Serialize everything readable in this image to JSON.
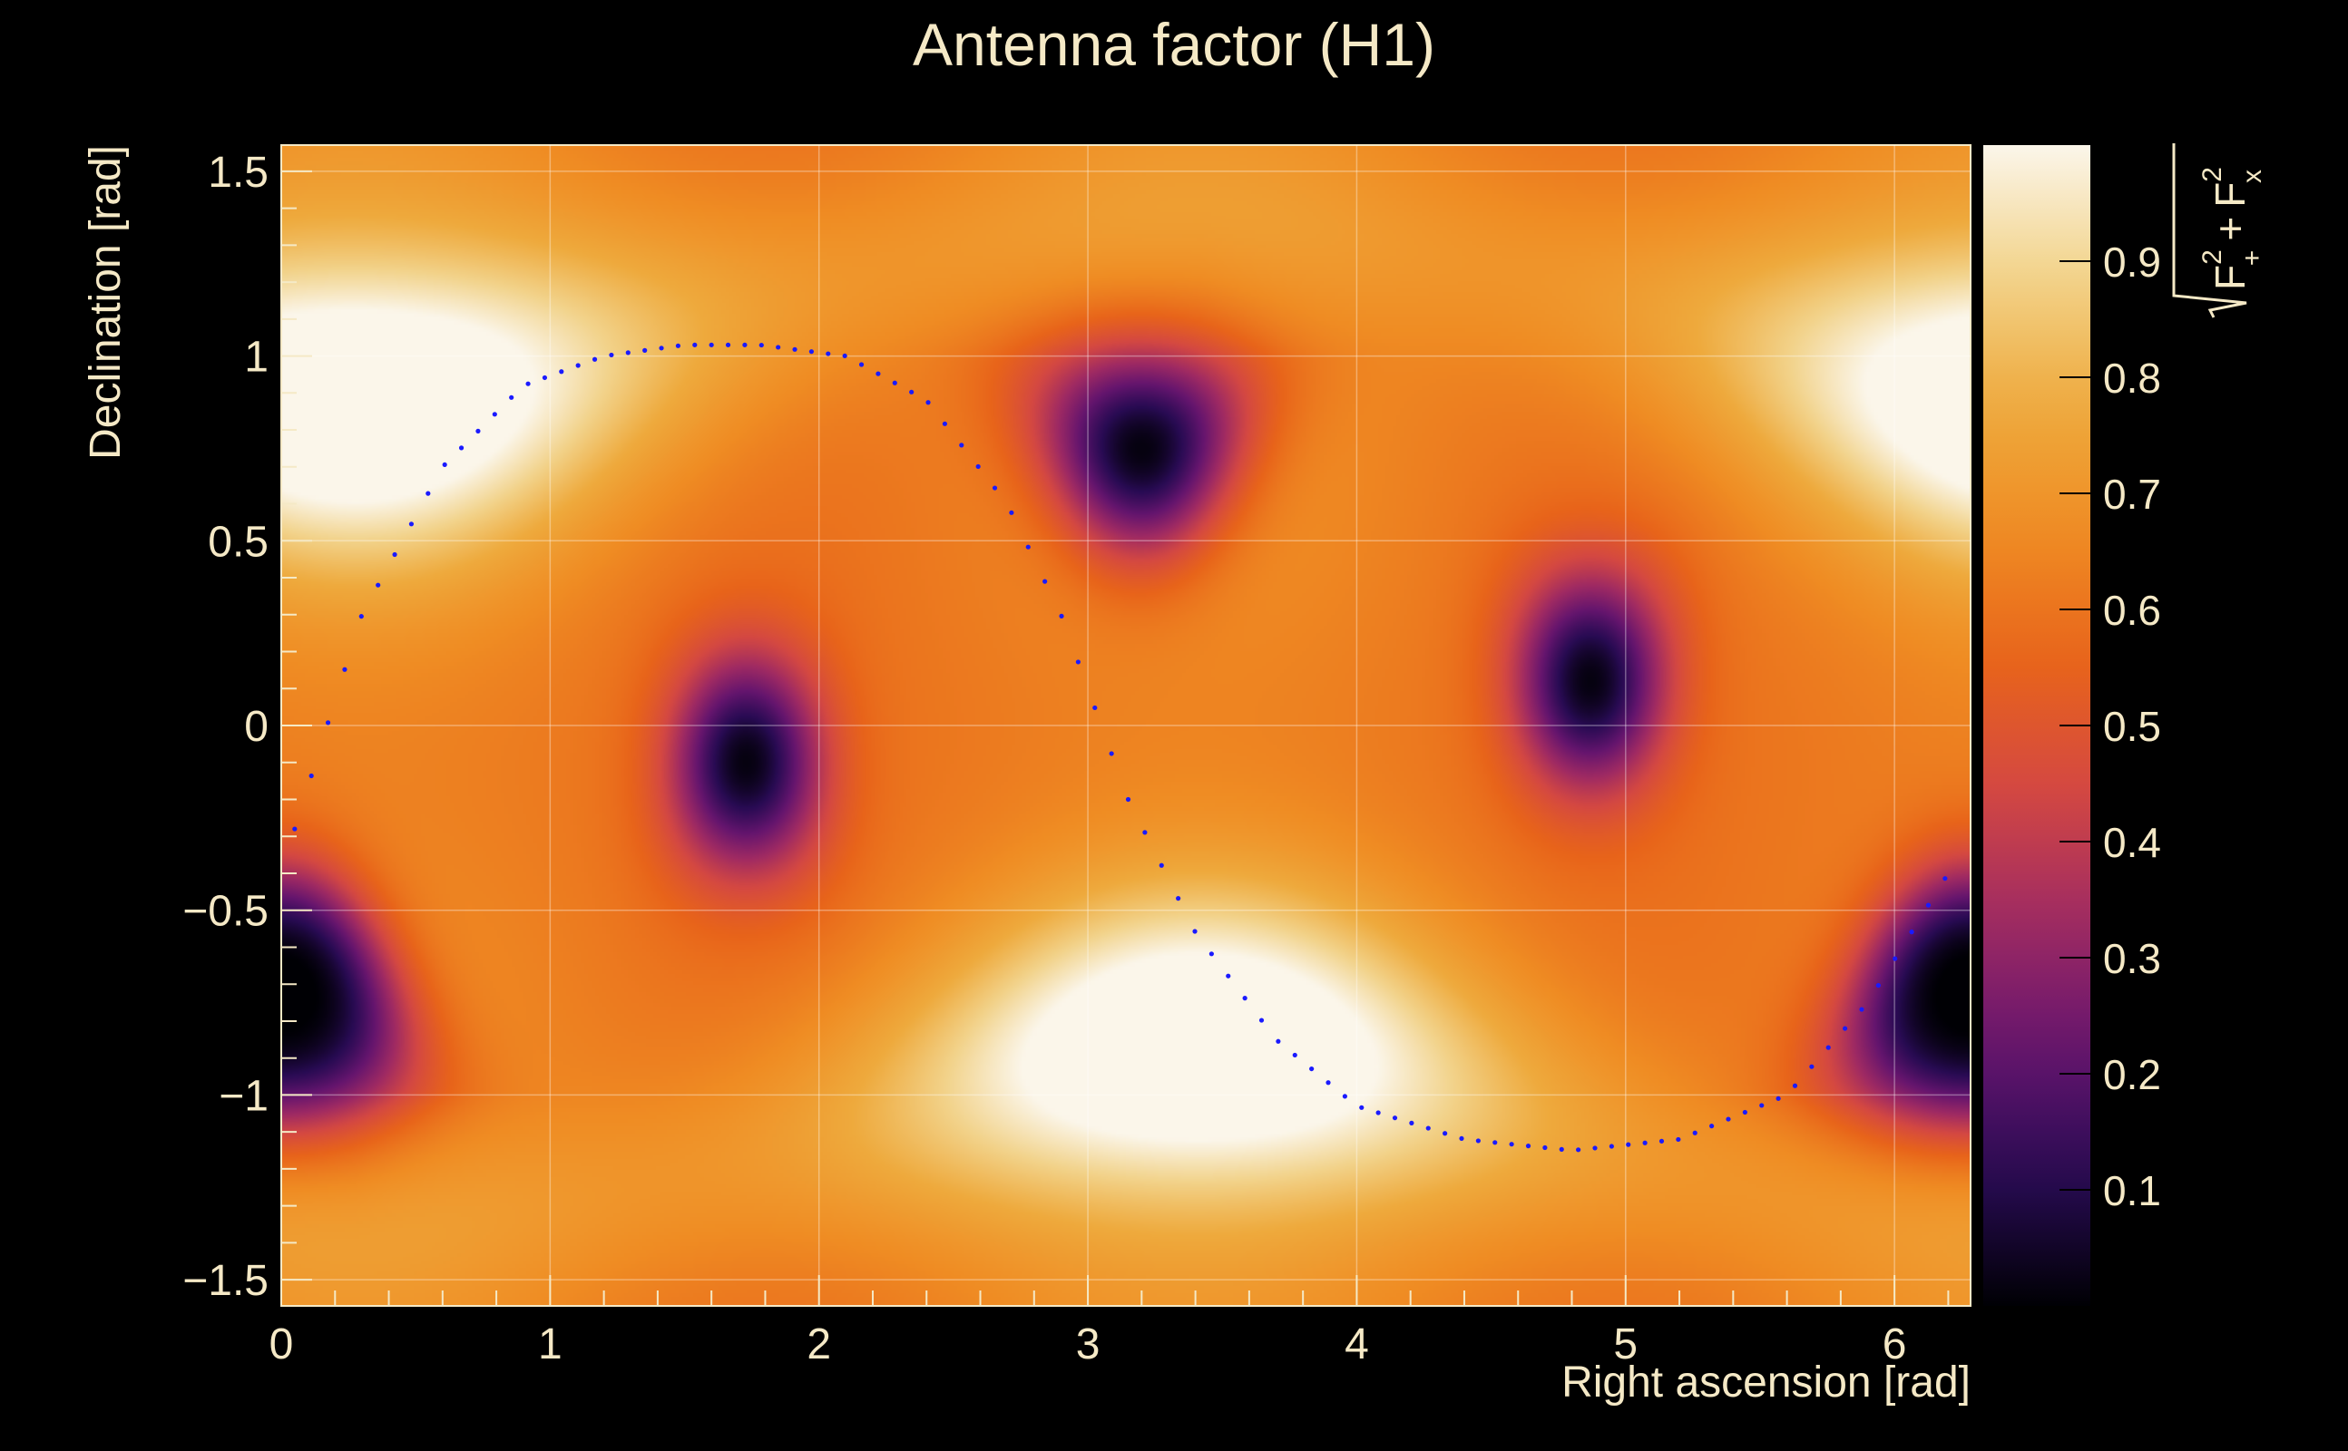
{
  "chart_data": {
    "type": "heatmap",
    "title": "Antenna factor (H1)",
    "xlabel": "Right ascension [rad]",
    "ylabel": "Declination [rad]",
    "xlim": [
      0,
      6.283
    ],
    "ylim": [
      -1.5708,
      1.5708
    ],
    "x_ticks": [
      0,
      1,
      2,
      3,
      4,
      5,
      6
    ],
    "y_ticks": [
      -1.5,
      -1,
      -0.5,
      0,
      0.5,
      1,
      1.5
    ],
    "x_tick_labels": [
      "0",
      "1",
      "2",
      "3",
      "4",
      "5",
      "6"
    ],
    "y_tick_labels": [
      "−1.5",
      "−1",
      "−0.5",
      "0",
      "0.5",
      "1",
      "1.5"
    ],
    "grid": true,
    "colorbar": {
      "label_terms": [
        "F",
        "+",
        "F"
      ],
      "range": [
        0,
        1
      ],
      "ticks": [
        0.1,
        0.2,
        0.3,
        0.4,
        0.5,
        0.6,
        0.7,
        0.8,
        0.9
      ],
      "tick_labels": [
        "0.1",
        "0.2",
        "0.3",
        "0.4",
        "0.5",
        "0.6",
        "0.7",
        "0.8",
        "0.9"
      ],
      "colormap_stops": [
        "#000004",
        "#280b53",
        "#65156e",
        "#9f2a63",
        "#d44842",
        "#e8641a",
        "#ef8c23",
        "#eeaa3d",
        "#f2d38b",
        "#fbf6ea"
      ]
    },
    "maxima": [
      {
        "ra": 0.28,
        "dec": 0.86,
        "value": 1.0
      },
      {
        "ra": 3.42,
        "dec": -0.86,
        "value": 1.0
      }
    ],
    "minima": [
      {
        "ra": 1.73,
        "dec": -0.1,
        "value": 0.02
      },
      {
        "ra": 3.2,
        "dec": 0.75,
        "value": 0.02
      },
      {
        "ra": 4.87,
        "dec": 0.12,
        "value": 0.02
      },
      {
        "ra": 6.28,
        "dec": -0.74,
        "value": 0.02
      },
      {
        "ra": 0.0,
        "dec": -0.74,
        "value": 0.02
      }
    ],
    "dotted_curve": {
      "color": "#1a1aff",
      "amplitude": 1.13,
      "peak_ra": 1.78,
      "points": [
        [
          0.05,
          -0.28
        ],
        [
          0.3,
          0.3
        ],
        [
          0.6,
          0.7
        ],
        [
          0.9,
          0.92
        ],
        [
          1.2,
          1.0
        ],
        [
          1.5,
          1.03
        ],
        [
          1.78,
          1.03
        ],
        [
          2.1,
          1.0
        ],
        [
          2.4,
          0.88
        ],
        [
          2.7,
          0.6
        ],
        [
          2.9,
          0.3
        ],
        [
          3.0,
          0.1
        ],
        [
          3.15,
          -0.2
        ],
        [
          3.4,
          -0.56
        ],
        [
          3.7,
          -0.85
        ],
        [
          4.0,
          -1.03
        ],
        [
          4.4,
          -1.12
        ],
        [
          4.8,
          -1.15
        ],
        [
          5.2,
          -1.12
        ],
        [
          5.6,
          -1.0
        ],
        [
          5.9,
          -0.75
        ],
        [
          6.2,
          -0.4
        ]
      ]
    }
  }
}
